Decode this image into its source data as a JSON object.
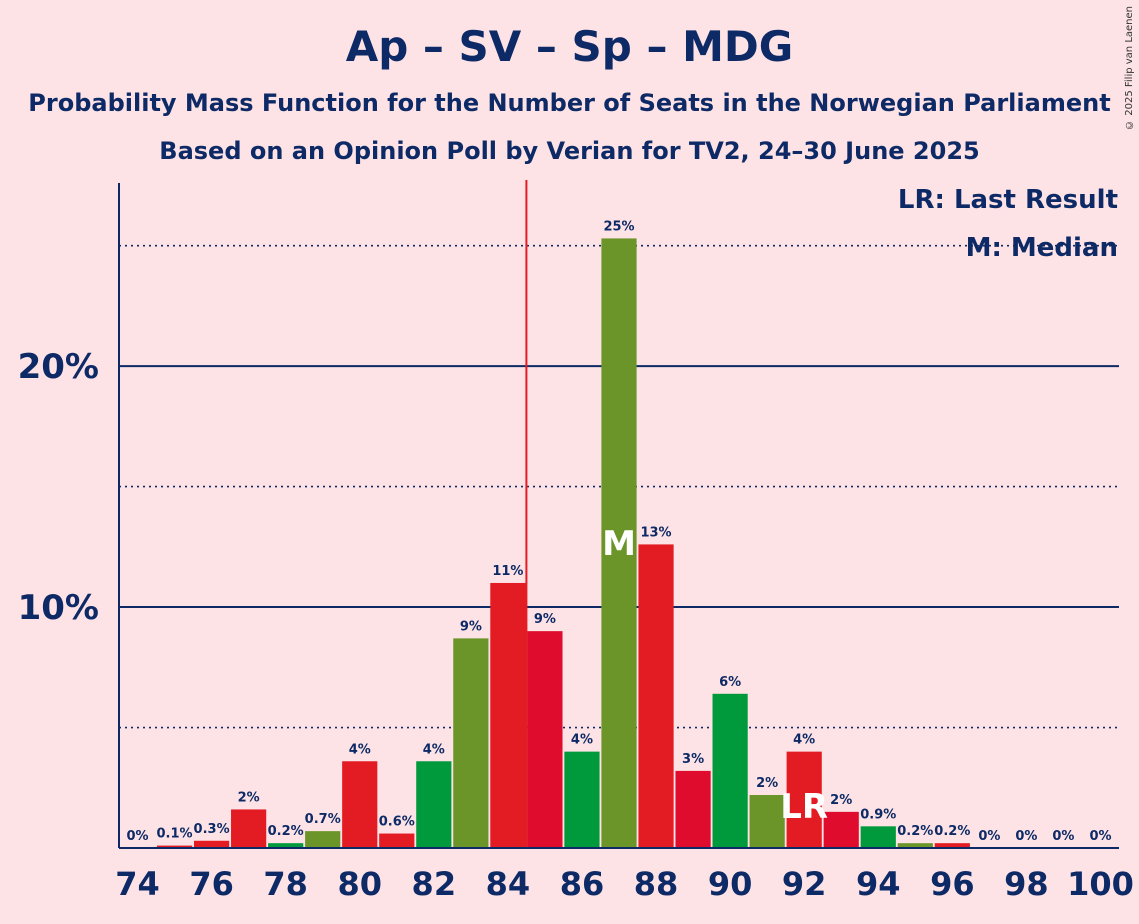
{
  "chart_data": {
    "type": "bar",
    "title": "Ap – SV – Sp – MDG",
    "subtitle_lines": [
      "Probability Mass Function for the Number of Seats in the Norwegian Parliament",
      "Based on an Opinion Poll by Verian for TV2, 24–30 June 2025"
    ],
    "copyright": "© 2025 Filip van Laenen",
    "legend": [
      "LR: Last Result",
      "M: Median"
    ],
    "ylim": [
      0,
      27.6
    ],
    "yticks": [
      {
        "value": 10,
        "label": "10%"
      },
      {
        "value": 20,
        "label": "20%"
      }
    ],
    "dotted_gridlines": [
      5,
      15,
      25
    ],
    "solid_gridlines": [
      10,
      20
    ],
    "xlim": [
      73.5,
      100.5
    ],
    "xticks": [
      74,
      76,
      78,
      80,
      82,
      84,
      86,
      88,
      90,
      92,
      94,
      96,
      98,
      100
    ],
    "majority_line_x": 84.5,
    "median_seat": 87,
    "median_label": "M",
    "last_result_seat": 92,
    "last_result_label": "LR",
    "seats": [
      74,
      75,
      76,
      77,
      78,
      79,
      80,
      81,
      82,
      83,
      84,
      85,
      86,
      87,
      88,
      89,
      90,
      91,
      92,
      93,
      94,
      95,
      96,
      97,
      98,
      99,
      100
    ],
    "values": [
      0,
      0.1,
      0.3,
      1.6,
      0.2,
      0.7,
      3.6,
      0.6,
      3.6,
      8.7,
      11.0,
      9.0,
      4.0,
      25.3,
      12.6,
      3.2,
      6.4,
      2.2,
      4.0,
      1.5,
      0.9,
      0.2,
      0.2,
      0,
      0,
      0,
      0
    ],
    "labels": [
      "0%",
      "0.1%",
      "0.3%",
      "2%",
      "0.2%",
      "0.7%",
      "4%",
      "0.6%",
      "4%",
      "9%",
      "11%",
      "9%",
      "4%",
      "25%",
      "13%",
      "3%",
      "6%",
      "2%",
      "4%",
      "2%",
      "0.9%",
      "0.2%",
      "0.2%",
      "0%",
      "0%",
      "0%",
      "0%"
    ],
    "colors": [
      "#e31b23",
      "#e31b23",
      "#e31b23",
      "#e31b23",
      "#009a3d",
      "#6b9528",
      "#e31b23",
      "#e31b23",
      "#009a3d",
      "#6b9528",
      "#e31b23",
      "#e00c2d",
      "#009a3d",
      "#6b9528",
      "#e31b23",
      "#e00c2d",
      "#009a3d",
      "#6b9528",
      "#e31b23",
      "#e00c2d",
      "#009a3d",
      "#6b9528",
      "#e31b23",
      "#e00c2d",
      "#009a3d",
      "#6b9528",
      "#e31b23"
    ],
    "majority_line_color": "#e31b23",
    "axis_color": "#0d2a66"
  }
}
